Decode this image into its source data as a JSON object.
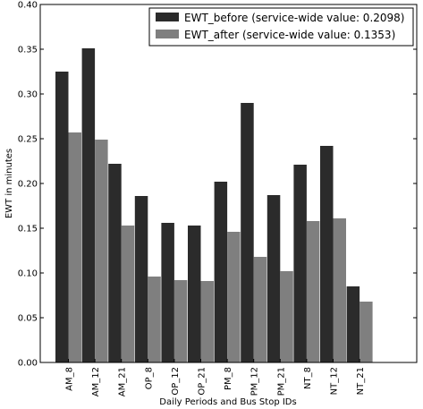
{
  "chart_data": {
    "type": "bar",
    "categories": [
      "AM_8",
      "AM_12",
      "AM_21",
      "OP_8",
      "OP_12",
      "OP_21",
      "PM_8",
      "PM_12",
      "PM_21",
      "NT_8",
      "NT_12",
      "NT_21"
    ],
    "series": [
      {
        "name": "EWT_before (service-wide value: 0.2098)",
        "color": "#2b2b2b",
        "values": [
          0.325,
          0.351,
          0.222,
          0.186,
          0.156,
          0.153,
          0.202,
          0.29,
          0.187,
          0.221,
          0.242,
          0.085
        ]
      },
      {
        "name": "EWT_after (service-wide value: 0.1353)",
        "color": "#7f7f7f",
        "values": [
          0.257,
          0.249,
          0.153,
          0.096,
          0.092,
          0.091,
          0.146,
          0.118,
          0.102,
          0.158,
          0.161,
          0.068
        ]
      }
    ],
    "title": "",
    "xlabel": "Daily Periods and Bus Stop IDs",
    "ylabel": "EWT in minutes",
    "ylim": [
      0,
      0.4
    ],
    "yticks": [
      "0.00",
      "0.05",
      "0.10",
      "0.15",
      "0.20",
      "0.25",
      "0.30",
      "0.35",
      "0.40"
    ],
    "grid": false,
    "legend_position": "top-right"
  }
}
